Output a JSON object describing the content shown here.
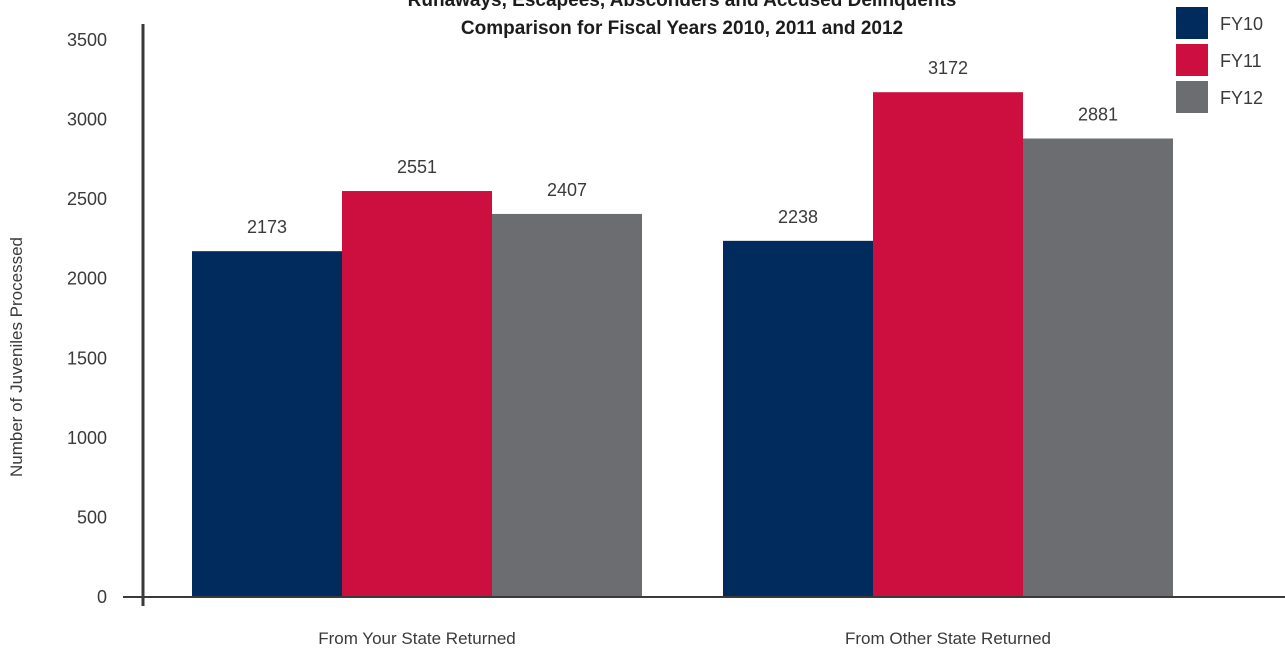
{
  "chart_data": {
    "type": "bar",
    "title": "Runaways, Escapees, Absconders and Accused Delinquents",
    "subtitle": "Comparison for Fiscal Years 2010, 2011 and 2012",
    "xlabel": "",
    "ylabel": "Number of Juveniles Processed",
    "ylim": [
      0,
      3500
    ],
    "yticks": [
      0,
      500,
      1000,
      1500,
      2000,
      2500,
      3000,
      3500
    ],
    "categories": [
      "From Your State Returned",
      "From Other State Returned"
    ],
    "series": [
      {
        "name": "FY10",
        "color": "#002b5c",
        "values": [
          2173,
          2238
        ]
      },
      {
        "name": "FY11",
        "color": "#cc0f3f",
        "values": [
          2551,
          3172
        ]
      },
      {
        "name": "FY12",
        "color": "#6c6d70",
        "values": [
          2407,
          2881
        ]
      }
    ],
    "grid": false,
    "legend_position": "top-right"
  }
}
